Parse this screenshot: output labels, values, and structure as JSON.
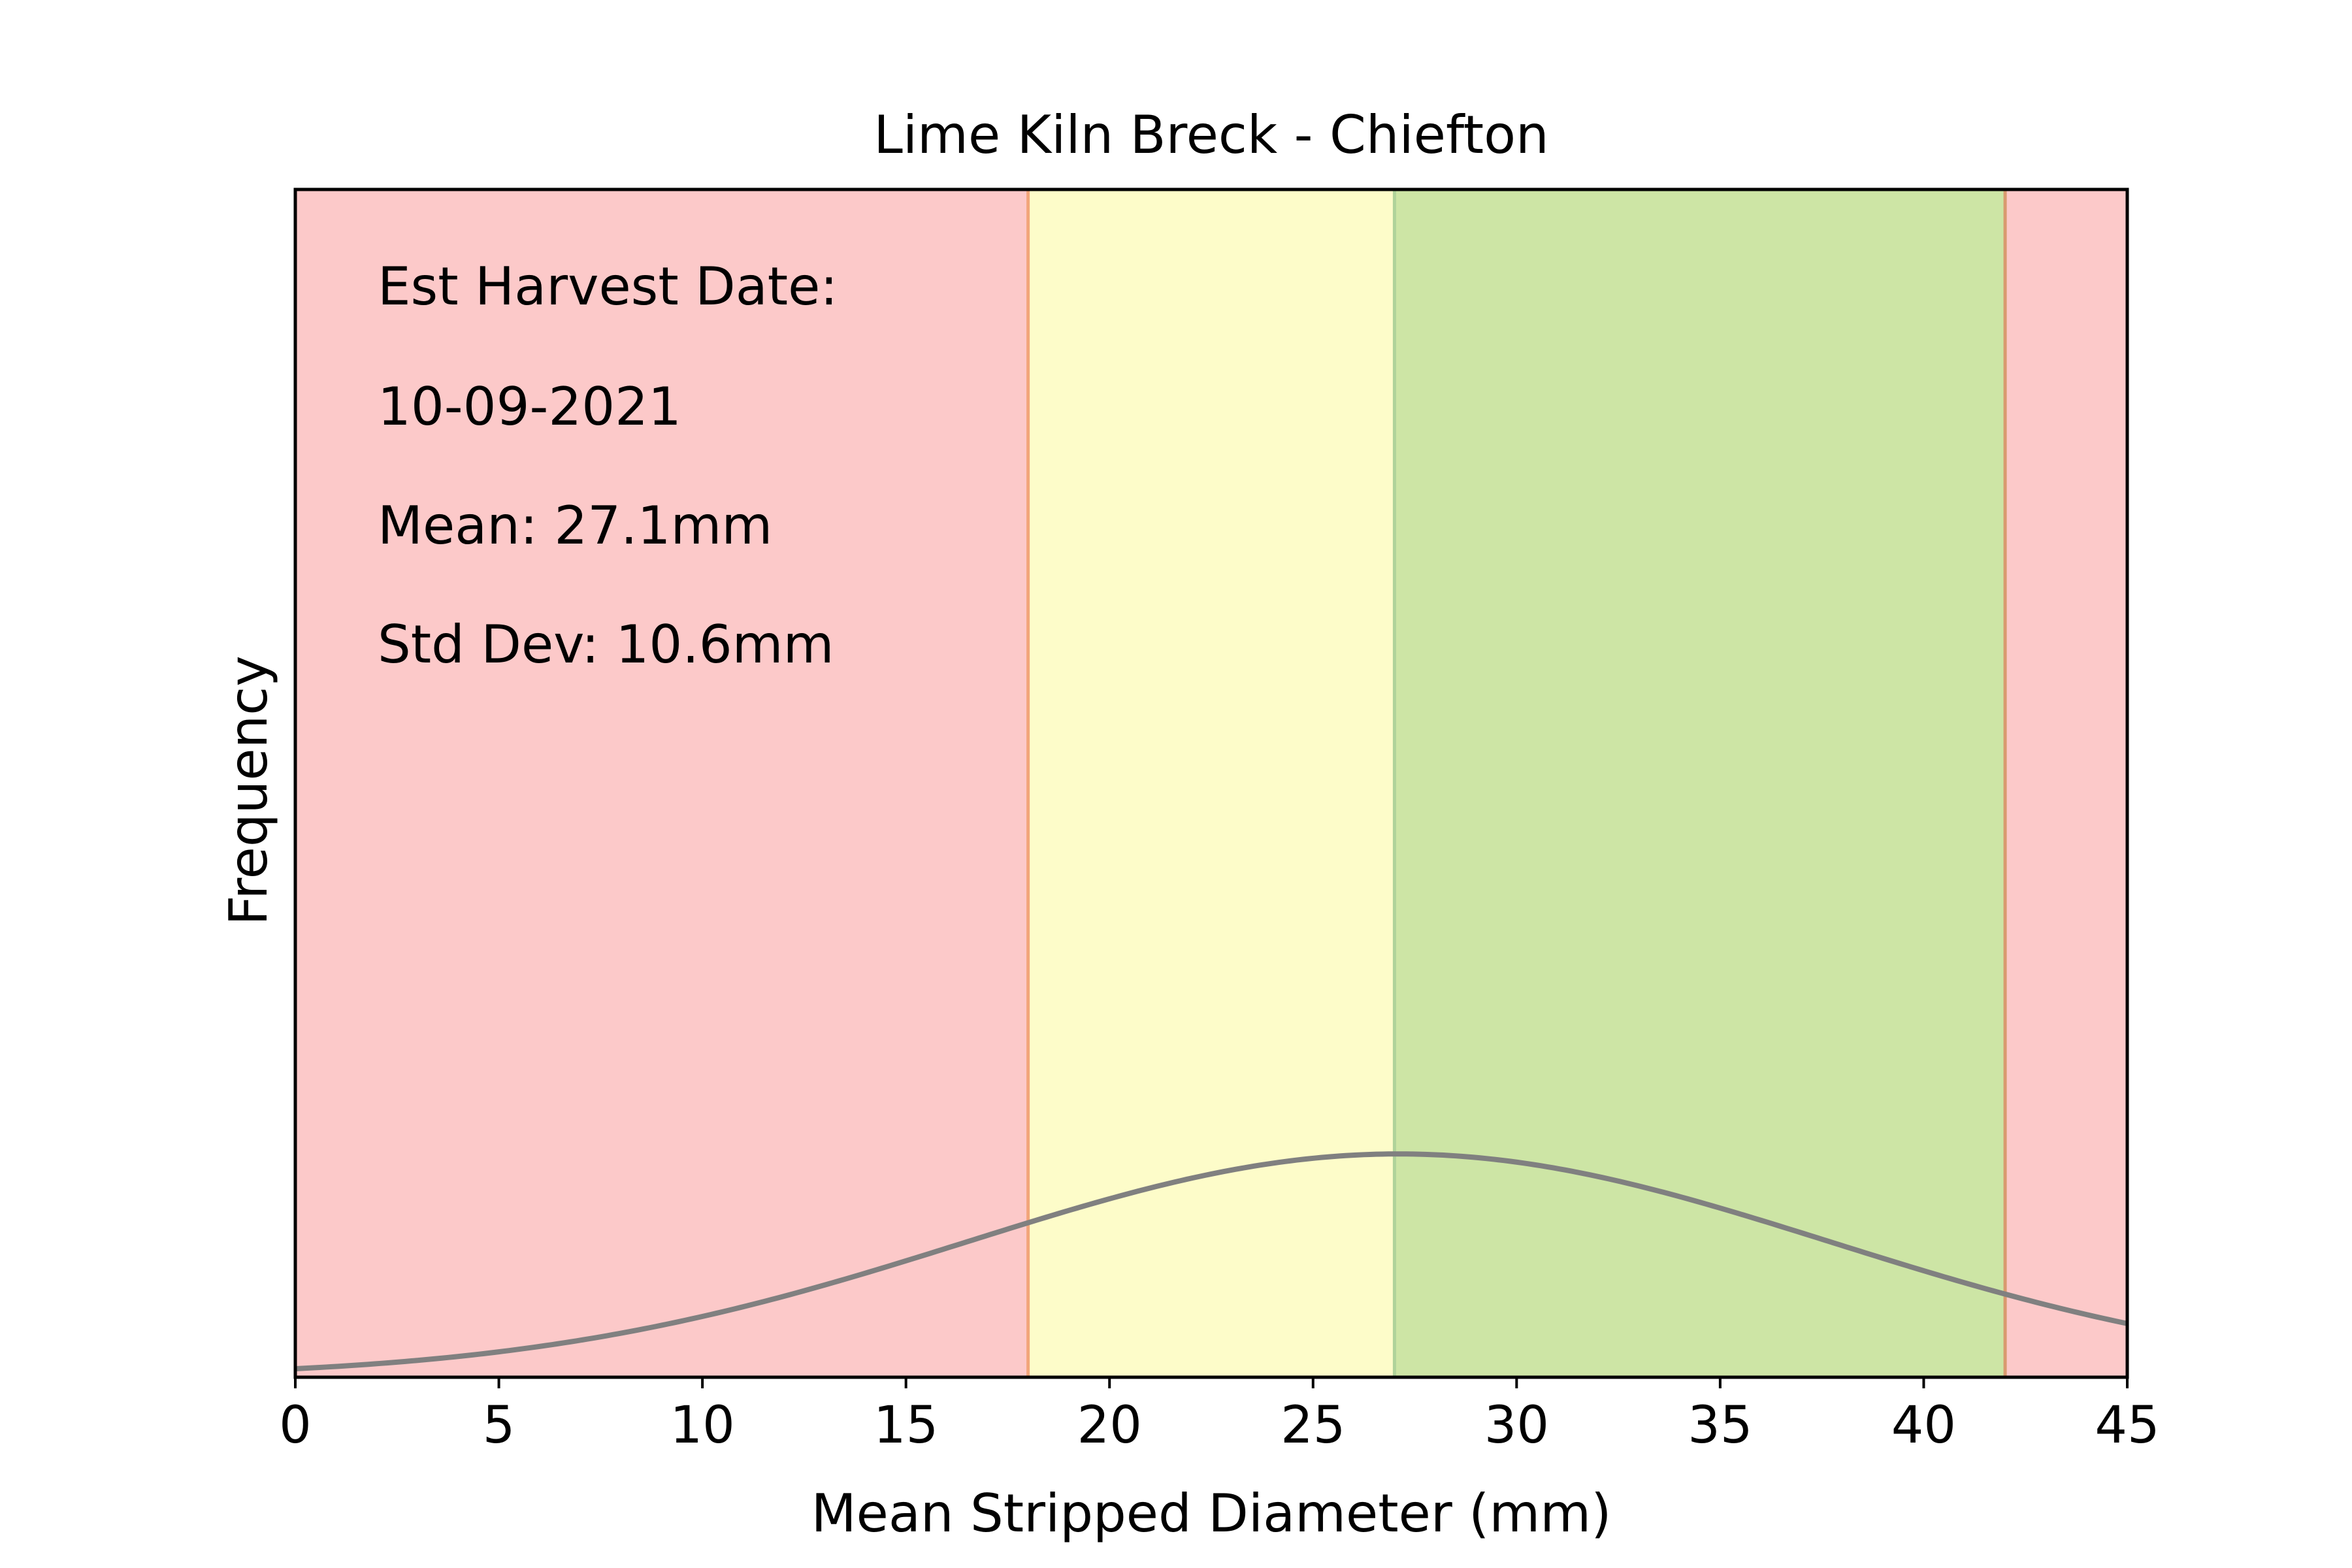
{
  "chart_data": {
    "type": "line",
    "title": "Lime Kiln Breck - Chiefton",
    "xlabel": "Mean Stripped Diameter (mm)",
    "ylabel": "Frequency",
    "xlim": [
      0,
      45
    ],
    "x_ticks": [
      "0",
      "5",
      "10",
      "15",
      "20",
      "25",
      "30",
      "35",
      "40",
      "45"
    ],
    "y_ticks_shown": false,
    "bands": [
      {
        "from": 0,
        "to": 18,
        "color": "#fcc9c9",
        "edge": "#f2a57a"
      },
      {
        "from": 18,
        "to": 27,
        "color": "#fdfcc9",
        "edge": "#b0d39a"
      },
      {
        "from": 27,
        "to": 42,
        "color": "#cde5a5",
        "edge": "#d99a6f"
      },
      {
        "from": 42,
        "to": 45,
        "color": "#fcc9c9",
        "edge": null
      }
    ],
    "series": [
      {
        "color": "#808080",
        "distribution": "normal",
        "mean": 27.1,
        "std": 10.6
      }
    ],
    "annotations": {
      "harvest_label": "Est Harvest Date:",
      "harvest_date": "10-09-2021",
      "mean_text": "Mean: 27.1mm",
      "std_text": "Std Dev: 10.6mm"
    }
  }
}
